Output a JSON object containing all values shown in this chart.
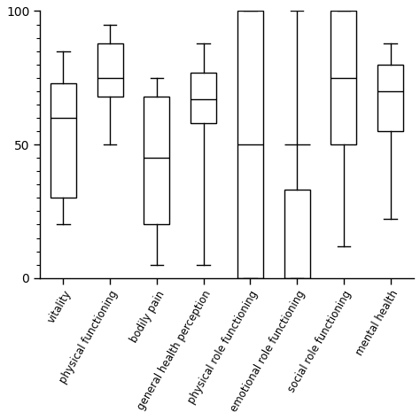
{
  "categories": [
    "vitality",
    "physical functioning",
    "bodily pain",
    "general health perception",
    "physical role functioning",
    "emotional role functioning",
    "social role functioning",
    "mental health"
  ],
  "boxplot_stats": [
    {
      "whislo": 20,
      "q1": 30,
      "med": 60,
      "q3": 73,
      "whishi": 85
    },
    {
      "whislo": 50,
      "q1": 68,
      "med": 75,
      "q3": 88,
      "whishi": 95
    },
    {
      "whislo": 5,
      "q1": 20,
      "med": 45,
      "q3": 68,
      "whishi": 75
    },
    {
      "whislo": 5,
      "q1": 58,
      "med": 67,
      "q3": 77,
      "whishi": 88
    },
    {
      "whislo": 0,
      "q1": 0,
      "med": 50,
      "q3": 100,
      "whishi": 100
    },
    {
      "whislo": 0,
      "q1": 0,
      "med": 50,
      "q3": 33,
      "whishi": 100
    },
    {
      "whislo": 12,
      "q1": 50,
      "med": 75,
      "q3": 100,
      "whishi": 100
    },
    {
      "whislo": 22,
      "q1": 55,
      "med": 70,
      "q3": 80,
      "whishi": 88
    }
  ],
  "ylim": [
    0,
    100
  ],
  "yticks": [
    0,
    50,
    100
  ],
  "box_color": "#ffffff",
  "line_color": "#000000",
  "background_color": "#ffffff",
  "linewidth": 1.0,
  "figsize": [
    4.74,
    4.74
  ],
  "dpi": 100
}
